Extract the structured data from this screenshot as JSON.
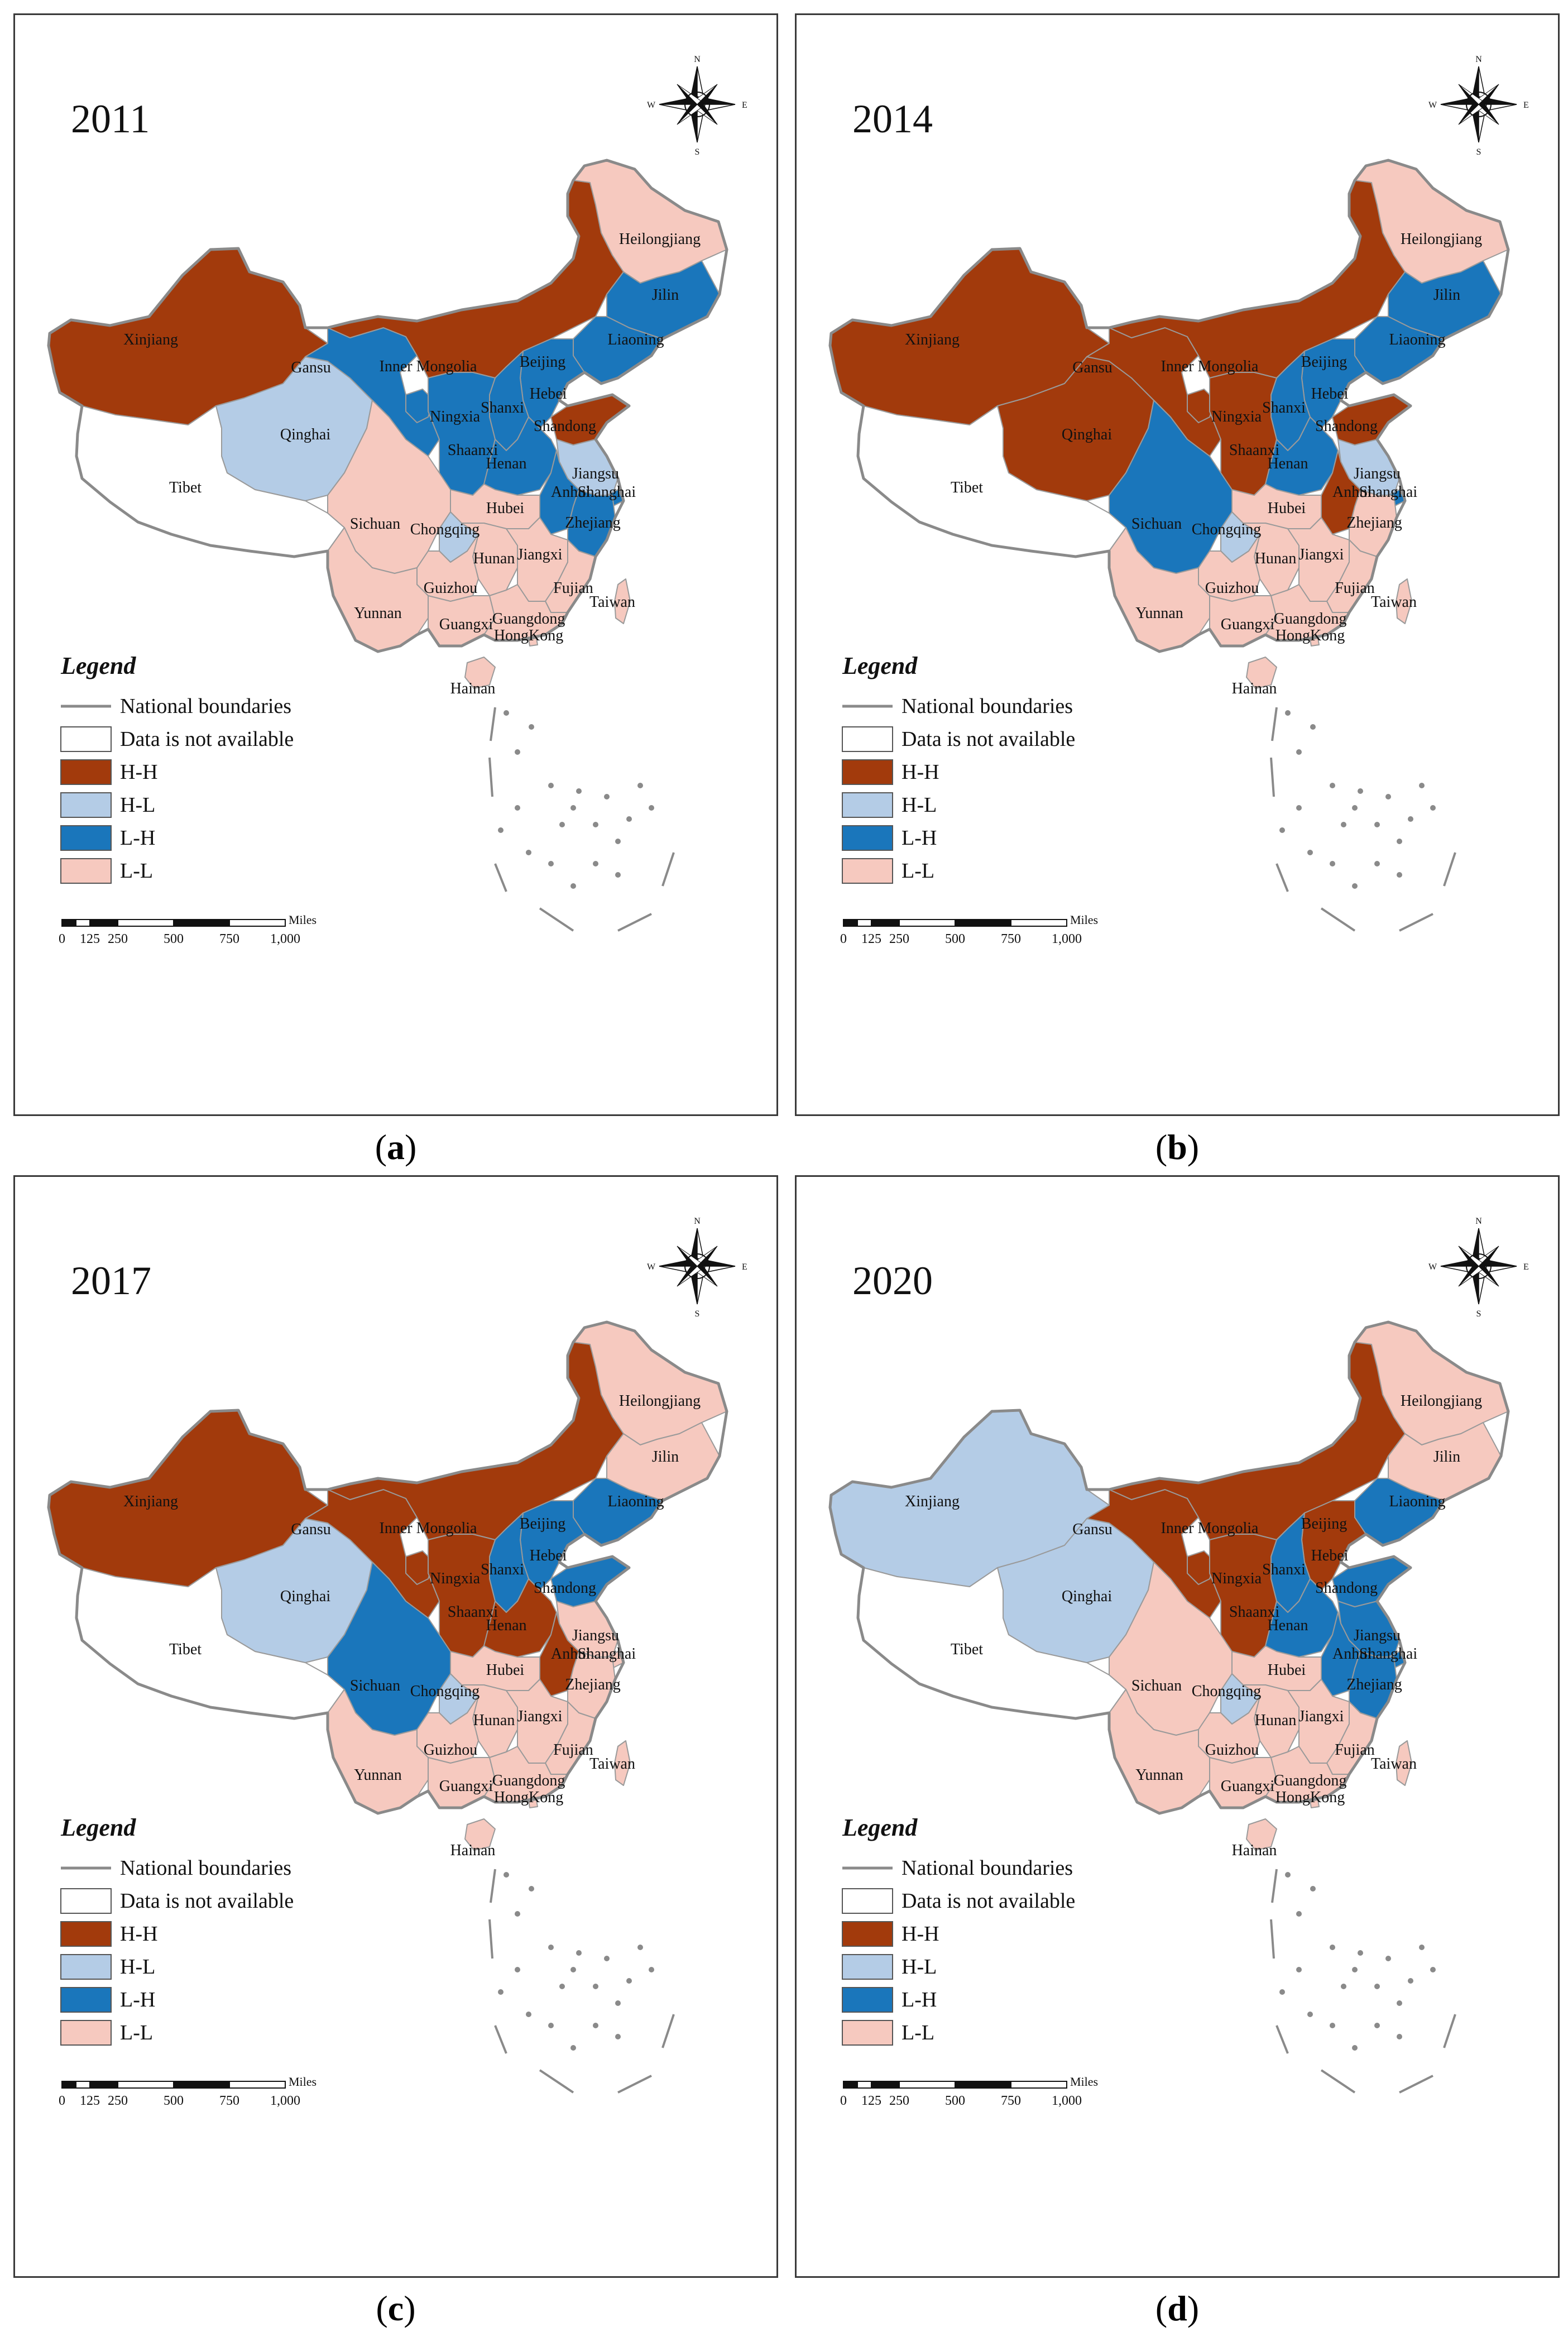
{
  "panels": [
    {
      "id": "a",
      "caption": "a",
      "year": "2011",
      "prov": {
        "Xinjiang": "H-H",
        "Tibet": "NA",
        "Qinghai": "H-L",
        "Gansu": "L-H",
        "InnerMongolia": "H-H",
        "Heilongjiang": "L-L",
        "Jilin": "L-H",
        "Liaoning": "L-H",
        "Beijing": "L-H",
        "Hebei": "L-H",
        "Shandong": "H-H",
        "Ningxia": "L-H",
        "Shanxi": "L-H",
        "Shaanxi": "L-H",
        "Henan": "L-H",
        "Jiangsu": "H-L",
        "Anhui": "L-H",
        "Shanghai": "L-H",
        "Zhejiang": "L-H",
        "Hubei": "L-L",
        "Sichuan": "L-L",
        "Chongqing": "H-L",
        "Hunan": "L-L",
        "Jiangxi": "L-L",
        "Guizhou": "L-L",
        "Fujian": "L-L",
        "Yunnan": "L-L",
        "Guangxi": "L-L",
        "Guangdong": "L-L",
        "HongKong": "L-L",
        "Taiwan": "L-L",
        "Hainan": "L-L"
      }
    },
    {
      "id": "b",
      "caption": "b",
      "year": "2014",
      "prov": {
        "Xinjiang": "H-H",
        "Tibet": "NA",
        "Qinghai": "H-H",
        "Gansu": "H-H",
        "InnerMongolia": "H-H",
        "Heilongjiang": "L-L",
        "Jilin": "L-H",
        "Liaoning": "L-H",
        "Beijing": "L-H",
        "Hebei": "L-H",
        "Shandong": "H-H",
        "Ningxia": "H-H",
        "Shanxi": "L-H",
        "Shaanxi": "H-H",
        "Henan": "L-H",
        "Jiangsu": "H-L",
        "Anhui": "H-H",
        "Shanghai": "L-H",
        "Zhejiang": "L-L",
        "Hubei": "L-L",
        "Sichuan": "L-H",
        "Chongqing": "H-L",
        "Hunan": "L-L",
        "Jiangxi": "L-L",
        "Guizhou": "L-L",
        "Fujian": "L-L",
        "Yunnan": "L-L",
        "Guangxi": "L-L",
        "Guangdong": "L-L",
        "HongKong": "L-L",
        "Taiwan": "L-L",
        "Hainan": "L-L"
      }
    },
    {
      "id": "c",
      "caption": "c",
      "year": "2017",
      "prov": {
        "Xinjiang": "H-H",
        "Tibet": "NA",
        "Qinghai": "H-L",
        "Gansu": "H-H",
        "InnerMongolia": "H-H",
        "Heilongjiang": "L-L",
        "Jilin": "L-L",
        "Liaoning": "L-H",
        "Beijing": "L-H",
        "Hebei": "L-H",
        "Shandong": "L-H",
        "Ningxia": "H-H",
        "Shanxi": "L-H",
        "Shaanxi": "H-H",
        "Henan": "H-H",
        "Jiangsu": "L-L",
        "Anhui": "H-H",
        "Shanghai": "L-L",
        "Zhejiang": "L-L",
        "Hubei": "L-L",
        "Sichuan": "L-H",
        "Chongqing": "H-L",
        "Hunan": "L-L",
        "Jiangxi": "L-L",
        "Guizhou": "L-L",
        "Fujian": "L-L",
        "Yunnan": "L-L",
        "Guangxi": "L-L",
        "Guangdong": "L-L",
        "HongKong": "L-L",
        "Taiwan": "L-L",
        "Hainan": "L-L"
      }
    },
    {
      "id": "d",
      "caption": "d",
      "year": "2020",
      "prov": {
        "Xinjiang": "H-L",
        "Tibet": "NA",
        "Qinghai": "H-L",
        "Gansu": "H-H",
        "InnerMongolia": "H-H",
        "Heilongjiang": "L-L",
        "Jilin": "L-L",
        "Liaoning": "L-H",
        "Beijing": "H-H",
        "Hebei": "H-H",
        "Shandong": "L-H",
        "Ningxia": "H-H",
        "Shanxi": "L-H",
        "Shaanxi": "H-H",
        "Henan": "L-H",
        "Jiangsu": "L-H",
        "Anhui": "L-H",
        "Shanghai": "L-H",
        "Zhejiang": "L-H",
        "Hubei": "L-L",
        "Sichuan": "L-L",
        "Chongqing": "H-L",
        "Hunan": "L-L",
        "Jiangxi": "L-L",
        "Guizhou": "L-L",
        "Fujian": "L-L",
        "Yunnan": "L-L",
        "Guangxi": "L-L",
        "Guangdong": "L-L",
        "HongKong": "L-L",
        "Taiwan": "L-L",
        "Hainan": "L-L"
      }
    }
  ],
  "province_labels": {
    "Xinjiang": "Xinjiang",
    "Tibet": "Tibet",
    "Qinghai": "Qinghai",
    "Gansu": "Gansu",
    "InnerMongolia": "Inner Mongolia",
    "Heilongjiang": "Heilongjiang",
    "Jilin": "Jilin",
    "Liaoning": "Liaoning",
    "Beijing": "Beijing",
    "Hebei": "Hebei",
    "Shandong": "Shandong",
    "Ningxia": "Ningxia",
    "Shanxi": "Shanxi",
    "Shaanxi": "Shaanxi",
    "Henan": "Henan",
    "Jiangsu": "Jiangsu",
    "Anhui": "Anhui",
    "Shanghai": "Shanghai",
    "Zhejiang": "Zhejiang",
    "Hubei": "Hubei",
    "Sichuan": "Sichuan",
    "Chongqing": "Chongqing",
    "Hunan": "Hunan",
    "Jiangxi": "Jiangxi",
    "Guizhou": "Guizhou",
    "Fujian": "Fujian",
    "Yunnan": "Yunnan",
    "Guangxi": "Guangxi",
    "Guangdong": "Guangdong",
    "HongKong": "HongKong",
    "Taiwan": "Taiwan",
    "Hainan": "Hainan"
  },
  "legend": {
    "title": "Legend",
    "items": [
      {
        "key": "boundary",
        "label": "National boundaries"
      },
      {
        "key": "NA",
        "label": "Data is not available"
      },
      {
        "key": "H-H",
        "label": "H-H"
      },
      {
        "key": "H-L",
        "label": "H-L"
      },
      {
        "key": "L-H",
        "label": "L-H"
      },
      {
        "key": "L-L",
        "label": "L-L"
      }
    ]
  },
  "colors": {
    "H-H": "#a23a0c",
    "H-L": "#b4cce6",
    "L-H": "#1a76bb",
    "L-L": "#f6c9bf",
    "NA": "#ffffff",
    "boundary": "#8a8a8a"
  },
  "scalebar": {
    "unit": "Miles",
    "ticks": [
      "0",
      "125",
      "250",
      "500",
      "750",
      "1,000"
    ]
  },
  "compass": {
    "n": "N",
    "s": "S",
    "e": "E",
    "w": "W"
  }
}
